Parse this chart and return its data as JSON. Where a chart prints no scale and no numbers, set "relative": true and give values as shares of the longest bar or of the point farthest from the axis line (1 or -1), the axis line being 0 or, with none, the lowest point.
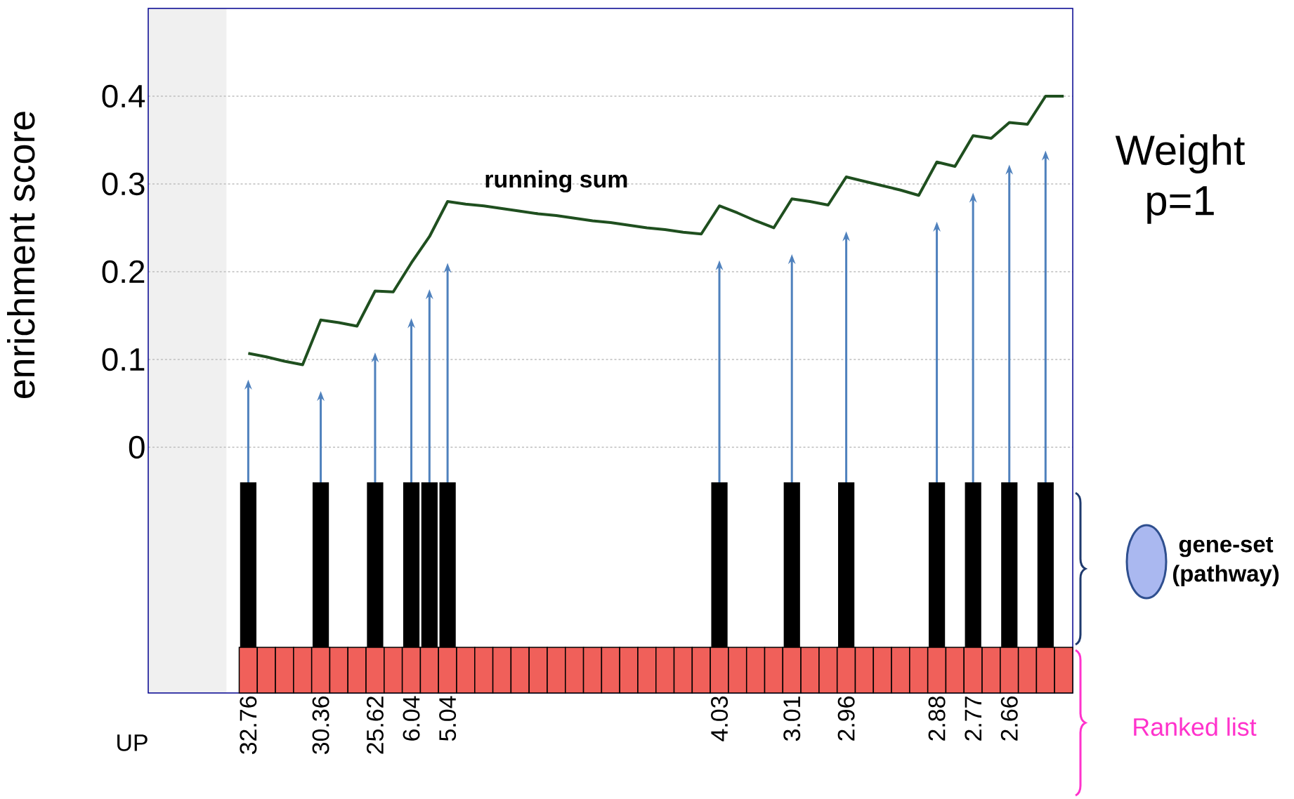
{
  "chart_data": [
    {
      "type": "line",
      "ylabel": "enrichment score",
      "categories": [
        "32.76",
        null,
        null,
        null,
        "30.36",
        null,
        null,
        "25.62",
        null,
        "6.04",
        null,
        "5.04",
        null,
        null,
        null,
        null,
        null,
        null,
        null,
        null,
        null,
        null,
        null,
        null,
        null,
        null,
        "4.03",
        null,
        null,
        null,
        "3.01",
        null,
        null,
        "2.96",
        null,
        null,
        null,
        null,
        "2.88",
        null,
        "2.77",
        null,
        "2.66",
        null,
        null,
        null
      ],
      "series": [
        {
          "color": "#1f4f1f",
          "values": [
            0.107,
            0.103,
            0.098,
            0.094,
            0.145,
            0.142,
            0.138,
            0.178,
            0.177,
            0.21,
            0.24,
            0.28,
            0.277,
            0.275,
            0.272,
            0.269,
            0.266,
            0.264,
            0.261,
            0.258,
            0.256,
            0.253,
            0.25,
            0.248,
            0.245,
            0.243,
            0.275,
            0.267,
            0.258,
            0.25,
            0.283,
            0.28,
            0.276,
            0.308,
            0.303,
            0.298,
            0.293,
            0.287,
            0.325,
            0.32,
            0.355,
            0.352,
            0.37,
            0.368,
            0.4,
            0.4
          ]
        }
      ],
      "ylim": [
        -0.28,
        0.5
      ],
      "yticks": [
        0,
        0.1,
        0.2,
        0.3,
        0.4
      ],
      "grid": "y",
      "annotations": [
        "running sum",
        "Weight p=1",
        "gene-set (pathway)",
        "Ranked list",
        "UP"
      ]
    },
    {
      "type": "bar",
      "relative": true,
      "categories": [
        null,
        null,
        null,
        null,
        null,
        null,
        null,
        null,
        null,
        null,
        null,
        null,
        null,
        null,
        null,
        null,
        null,
        null,
        null,
        null,
        null,
        null,
        null,
        null,
        null,
        null,
        null,
        null,
        null,
        null,
        null,
        null,
        null,
        null,
        null,
        null,
        null,
        null,
        null,
        null,
        null,
        null,
        null,
        null,
        null,
        null
      ],
      "color": "#000000",
      "values": [
        1,
        0,
        0,
        0,
        1,
        0,
        0,
        1,
        0,
        1,
        1,
        1,
        0,
        0,
        0,
        0,
        0,
        0,
        0,
        0,
        0,
        0,
        0,
        0,
        0,
        0,
        1,
        0,
        0,
        0,
        1,
        0,
        0,
        1,
        0,
        0,
        0,
        0,
        1,
        0,
        1,
        0,
        1,
        0,
        1,
        0
      ]
    }
  ]
}
